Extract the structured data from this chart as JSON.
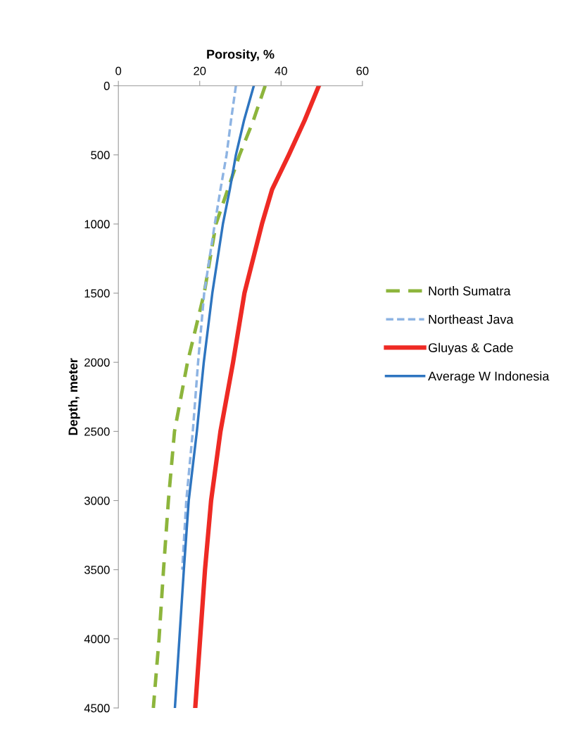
{
  "chart_data": {
    "type": "line",
    "xlabel": "Porosity, %",
    "ylabel": "Depth, meter",
    "xlim": [
      0,
      60
    ],
    "xticks": [
      0,
      20,
      40,
      60
    ],
    "ylim": [
      4500,
      0
    ],
    "yticks": [
      0,
      500,
      1000,
      1500,
      2000,
      2500,
      3000,
      3500,
      4000,
      4500
    ],
    "grid": false,
    "legend": "right",
    "marker": "none",
    "series": [
      {
        "name": "North Sumatra",
        "color": "#8db53c",
        "line_style": "dashed",
        "x": [
          36.1,
          33.2,
          29.8,
          26.9,
          24.0,
          21.1,
          17.0,
          13.8,
          12.3,
          11.1,
          10.0,
          8.6
        ],
        "values": [
          0,
          250,
          500,
          750,
          1000,
          1500,
          2000,
          2500,
          3000,
          3500,
          4000,
          4500
        ]
      },
      {
        "name": "Northeast Java",
        "color": "#8eb4e3",
        "line_style": "dashed",
        "x": [
          28.9,
          27.7,
          26.6,
          25.1,
          23.7,
          21.1,
          19.6,
          18.3,
          16.7,
          15.7
        ],
        "values": [
          0,
          250,
          500,
          750,
          1000,
          1500,
          2000,
          2500,
          3000,
          3500
        ]
      },
      {
        "name": "Gluyas & Cade",
        "color": "#ee2a24",
        "line_style": "solid",
        "x": [
          49.3,
          45.8,
          41.9,
          37.8,
          35.3,
          31.0,
          28.2,
          25.1,
          22.8,
          21.3,
          20.1,
          18.9
        ],
        "values": [
          0,
          250,
          500,
          750,
          1000,
          1500,
          2000,
          2500,
          3000,
          3500,
          4000,
          4500
        ]
      },
      {
        "name": "Average W Indonesia",
        "color": "#2e75c0",
        "line_style": "solid",
        "x": [
          33.3,
          30.9,
          28.9,
          27.4,
          25.7,
          23.1,
          21.0,
          19.3,
          17.3,
          16.1,
          15.0,
          13.9
        ],
        "values": [
          0,
          250,
          500,
          750,
          1000,
          1500,
          2000,
          2500,
          3000,
          3500,
          4000,
          4500
        ]
      }
    ]
  }
}
